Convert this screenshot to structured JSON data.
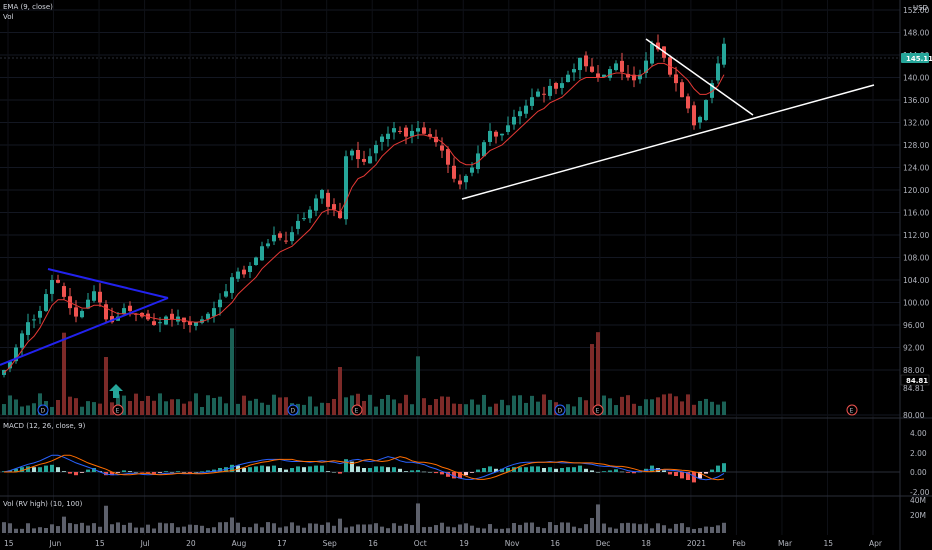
{
  "legend": {
    "ema_label": "EMA (9, close)",
    "vol_label": "Vol",
    "macd_label": "MACD (12, 26, close, 9)",
    "rvol_label": "Vol (RV high) (10, 100)"
  },
  "currency": "USD",
  "last_price_tag": "145.11",
  "secondary_price_tag": "84.81",
  "event_badges": [
    "D",
    "E",
    "D",
    "E",
    "D",
    "E",
    "E"
  ],
  "colors": {
    "up": "#26a69a",
    "down": "#ef5350",
    "ema": "#e53935",
    "macd_line": "#2962ff",
    "signal_line": "#ff6d00",
    "trendline_blue": "#2222ee",
    "trendline_white": "#ffffff",
    "price_tag_bg": "#26a69a",
    "vol_gray": "#5d606b"
  },
  "chart_data": [
    {
      "type": "candlestick",
      "title": "",
      "ylim": [
        80,
        152
      ],
      "y_ticks": [
        "152.00",
        "148.00",
        "144.00",
        "140.00",
        "136.00",
        "132.00",
        "128.00",
        "124.00",
        "120.00",
        "116.00",
        "112.00",
        "108.00",
        "104.00",
        "100.00",
        "96.00",
        "92.00",
        "88.00",
        "84.81",
        "80.00"
      ],
      "x_ticks": [
        "15",
        "Jun",
        "15",
        "Jul",
        "20",
        "Aug",
        "17",
        "Sep",
        "16",
        "Oct",
        "19",
        "Nov",
        "16",
        "Dec",
        "18",
        "2021",
        "Feb",
        "Mar",
        "15",
        "Apr"
      ],
      "trend_levels": [
        88.0,
        89.5,
        92.0,
        94.5,
        96.5,
        97.0,
        98.5,
        101.5,
        104.0,
        103.5,
        101.0,
        99.0,
        97.5,
        98.5,
        100.5,
        102.0,
        100.0,
        97.0,
        96.5,
        97.5,
        99.0,
        98.5,
        98.0,
        97.5,
        97.0,
        96.0,
        96.5,
        97.5,
        97.0,
        97.5,
        96.5,
        96.0,
        96.5,
        97.0,
        98.0,
        99.0,
        100.5,
        102.0,
        104.5,
        105.5,
        105.0,
        106.5,
        108.0,
        110.0,
        110.5,
        112.0,
        111.5,
        111.0,
        112.5,
        114.5,
        115.0,
        116.5,
        118.5,
        120.0,
        117.0,
        116.5,
        115.0,
        126.0,
        127.0,
        125.5,
        125.0,
        126.0,
        128.0,
        129.5,
        130.0,
        131.0,
        130.5,
        129.5,
        130.5,
        131.0,
        130.0,
        129.5,
        128.5,
        127.0,
        124.5,
        122.0,
        121.0,
        122.5,
        124.0,
        126.5,
        128.5,
        130.5,
        129.5,
        130.0,
        131.5,
        133.0,
        134.0,
        135.0,
        136.5,
        137.5,
        137.0,
        138.5,
        138.0,
        139.0,
        140.5,
        141.5,
        143.5,
        142.0,
        141.0,
        140.0,
        140.5,
        141.5,
        142.5,
        141.0,
        140.0,
        139.5,
        140.5,
        143.0,
        146.0,
        145.0,
        143.5,
        140.5,
        139.0,
        136.5,
        134.5,
        131.5,
        133.0,
        136.0,
        139.0,
        142.5,
        146.0
      ],
      "ema_levels": [
        87.5,
        88.5,
        90.0,
        91.5,
        93.0,
        94.0,
        95.5,
        97.5,
        99.5,
        100.5,
        100.5,
        100.0,
        99.5,
        99.0,
        99.0,
        99.5,
        99.5,
        99.0,
        98.5,
        98.0,
        98.0,
        98.0,
        98.0,
        97.8,
        97.5,
        97.2,
        97.0,
        97.0,
        97.0,
        97.0,
        96.8,
        96.6,
        96.5,
        96.6,
        97.0,
        97.5,
        98.0,
        99.0,
        100.0,
        101.5,
        102.5,
        103.5,
        104.5,
        106.0,
        107.0,
        108.0,
        109.0,
        109.5,
        110.0,
        111.0,
        112.0,
        113.0,
        114.5,
        116.0,
        116.5,
        116.5,
        116.0,
        118.0,
        120.5,
        122.0,
        122.5,
        123.5,
        124.5,
        126.0,
        127.0,
        128.0,
        128.5,
        129.0,
        129.5,
        129.8,
        129.8,
        129.5,
        129.2,
        128.5,
        127.5,
        126.0,
        125.0,
        124.5,
        124.5,
        125.0,
        126.0,
        127.0,
        127.5,
        128.0,
        129.0,
        130.0,
        131.0,
        132.0,
        133.0,
        134.0,
        134.5,
        135.5,
        136.0,
        136.5,
        137.5,
        138.5,
        139.5,
        140.0,
        140.0,
        140.0,
        140.0,
        140.5,
        140.8,
        140.8,
        140.5,
        140.3,
        140.3,
        141.0,
        142.0,
        142.5,
        142.5,
        142.0,
        141.5,
        140.5,
        139.5,
        138.0,
        137.0,
        137.0,
        137.5,
        138.5,
        140.5
      ],
      "volume_spikes_at": [
        10,
        17,
        38,
        56,
        69,
        98,
        99
      ]
    }
  ]
}
